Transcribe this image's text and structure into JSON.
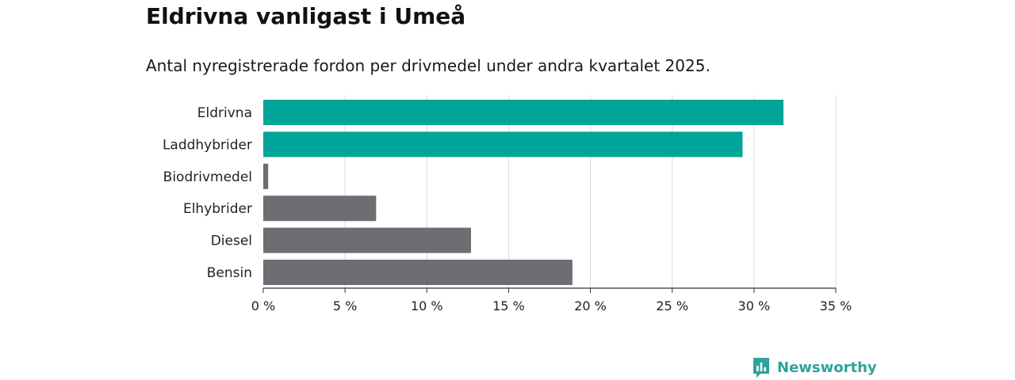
{
  "title": "Eldrivna vanligast i Umeå",
  "subtitle": "Antal nyregistrerade fordon per drivmedel under andra kvartalet 2025.",
  "brand": {
    "name": "Newsworthy",
    "icon": "newsworthy-logo-icon",
    "color": "#2fa39b"
  },
  "chart_data": {
    "type": "bar",
    "orientation": "horizontal",
    "title": "Eldrivna vanligast i Umeå",
    "subtitle": "Antal nyregistrerade fordon per drivmedel under andra kvartalet 2025.",
    "xlabel": "",
    "ylabel": "",
    "categories": [
      "Eldrivna",
      "Laddhybrider",
      "Biodrivmedel",
      "Elhybrider",
      "Diesel",
      "Bensin"
    ],
    "values": [
      31.8,
      29.3,
      0.3,
      6.9,
      12.7,
      18.9
    ],
    "colors": [
      "#00a499",
      "#00a499",
      "#6e6d73",
      "#6e6d73",
      "#6e6d73",
      "#6e6d73"
    ],
    "xlim": [
      0,
      35
    ],
    "xticks": [
      0,
      5,
      10,
      15,
      20,
      25,
      30,
      35
    ],
    "xtick_labels": [
      "0 %",
      "5 %",
      "10 %",
      "15 %",
      "20 %",
      "25 %",
      "30 %",
      "35 %"
    ],
    "grid": "vertical",
    "legend": "none"
  }
}
